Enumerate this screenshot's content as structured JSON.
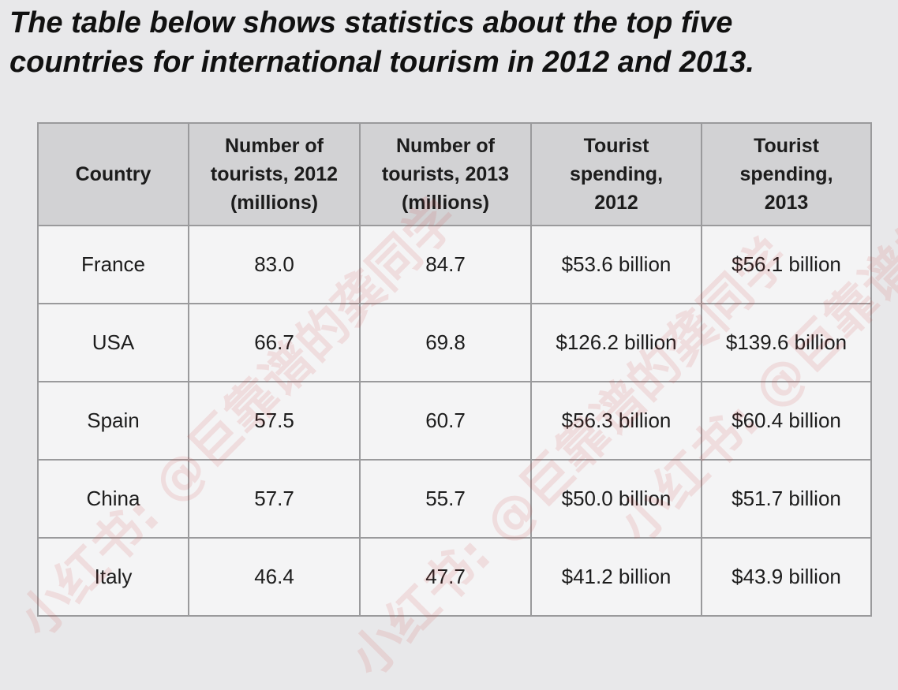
{
  "title": "The table below shows statistics about the top five countries for international tourism in 2012 and 2013.",
  "title_lines": [
    "The table below shows statistics about the top five",
    "countries for international tourism in 2012 and 2013."
  ],
  "table": {
    "headers": [
      [
        "Country"
      ],
      [
        "Number of",
        "tourists, 2012",
        "(millions)"
      ],
      [
        "Number of",
        "tourists, 2013",
        "(millions)"
      ],
      [
        "Tourist",
        "spending,",
        "2012"
      ],
      [
        "Tourist",
        "spending,",
        "2013"
      ]
    ],
    "rows": [
      [
        "France",
        "83.0",
        "84.7",
        "$53.6 billion",
        "$56.1 billion"
      ],
      [
        "USA",
        "66.7",
        "69.8",
        "$126.2 billion",
        "$139.6 billion"
      ],
      [
        "Spain",
        "57.5",
        "60.7",
        "$56.3 billion",
        "$60.4 billion"
      ],
      [
        "China",
        "57.7",
        "55.7",
        "$50.0 billion",
        "$51.7 billion"
      ],
      [
        "Italy",
        "46.4",
        "47.7",
        "$41.2 billion",
        "$43.9 billion"
      ]
    ]
  },
  "watermark_texts": [
    "小红书: @巨靠谱的龚同学",
    "小红书: @巨靠谱的龚同学",
    "小红书: @巨靠谱的龚同学"
  ]
}
